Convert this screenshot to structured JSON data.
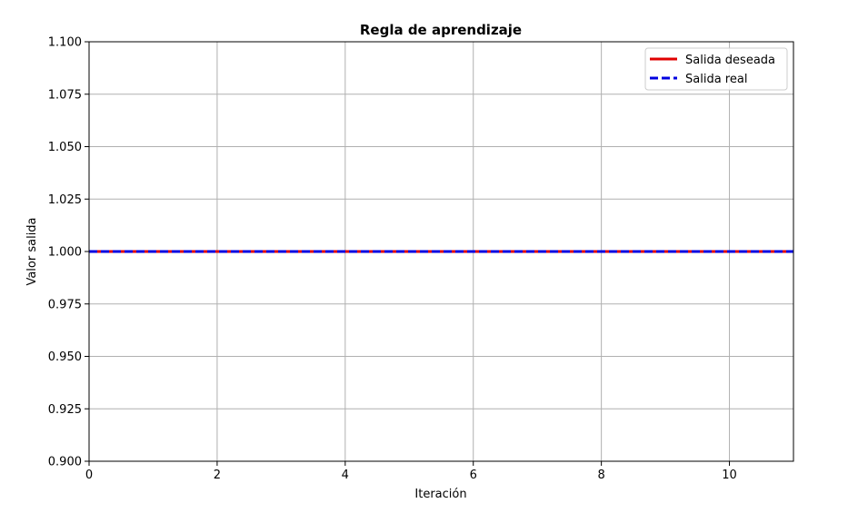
{
  "chart_data": {
    "type": "line",
    "title": "Regla de aprendizaje",
    "xlabel": "Iteración",
    "ylabel": "Valor salida",
    "xlim": [
      0,
      11
    ],
    "ylim": [
      0.9,
      1.1
    ],
    "xticks": [
      0,
      2,
      4,
      6,
      8,
      10
    ],
    "xtick_labels": [
      "0",
      "2",
      "4",
      "6",
      "8",
      "10"
    ],
    "yticks": [
      0.9,
      0.925,
      0.95,
      0.975,
      1.0,
      1.025,
      1.05,
      1.075,
      1.1
    ],
    "ytick_labels": [
      "0.900",
      "0.925",
      "0.950",
      "0.975",
      "1.000",
      "1.025",
      "1.050",
      "1.075",
      "1.100"
    ],
    "grid": true,
    "legend_position": "top-right",
    "x": [
      0,
      1,
      2,
      3,
      4,
      5,
      6,
      7,
      8,
      9,
      10,
      11
    ],
    "series": [
      {
        "name": "Salida deseada",
        "values": [
          1,
          1,
          1,
          1,
          1,
          1,
          1,
          1,
          1,
          1,
          1,
          1
        ],
        "color": "#e00000",
        "style": "solid"
      },
      {
        "name": "Salida real",
        "values": [
          1,
          1,
          1,
          1,
          1,
          1,
          1,
          1,
          1,
          1,
          1,
          1
        ],
        "color": "#0000e0",
        "style": "dashed"
      }
    ]
  }
}
